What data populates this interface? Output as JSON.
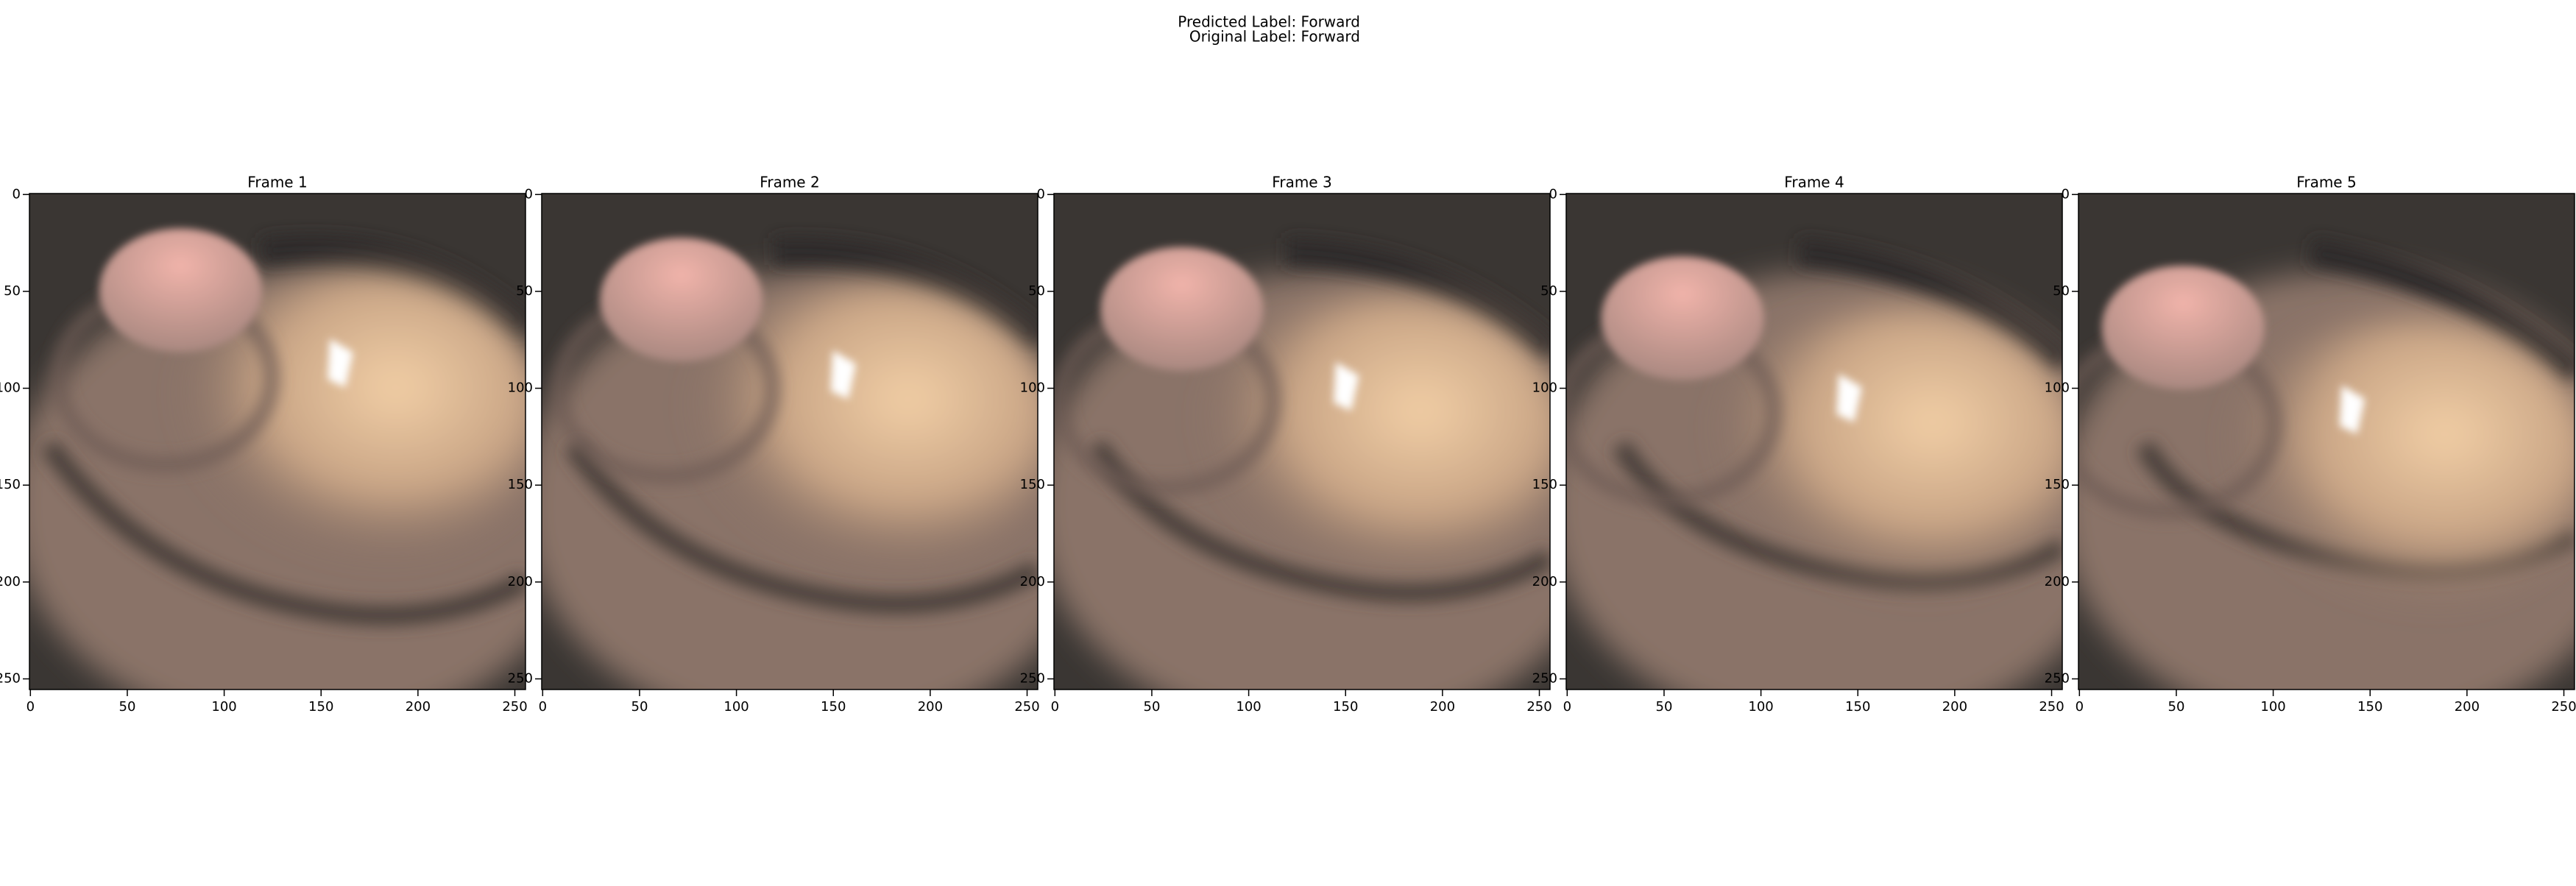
{
  "suptitle": [
    "Predicted Label: Forward",
    "Original Label: Forward"
  ],
  "chart_data": [
    {
      "type": "image",
      "title": "Frame 1",
      "xlim": [
        -0.5,
        255.5
      ],
      "ylim": [
        255.5,
        -0.5
      ],
      "xticks": [
        0,
        50,
        100,
        150,
        200,
        250
      ],
      "yticks": [
        0,
        50,
        100,
        150,
        200,
        250
      ]
    },
    {
      "type": "image",
      "title": "Frame 2",
      "xlim": [
        -0.5,
        255.5
      ],
      "ylim": [
        255.5,
        -0.5
      ],
      "xticks": [
        0,
        50,
        100,
        150,
        200,
        250
      ],
      "yticks": [
        0,
        50,
        100,
        150,
        200,
        250
      ]
    },
    {
      "type": "image",
      "title": "Frame 3",
      "xlim": [
        -0.5,
        255.5
      ],
      "ylim": [
        255.5,
        -0.5
      ],
      "xticks": [
        0,
        50,
        100,
        150,
        200,
        250
      ],
      "yticks": [
        0,
        50,
        100,
        150,
        200,
        250
      ]
    },
    {
      "type": "image",
      "title": "Frame 4",
      "xlim": [
        -0.5,
        255.5
      ],
      "ylim": [
        255.5,
        -0.5
      ],
      "xticks": [
        0,
        50,
        100,
        150,
        200,
        250
      ],
      "yticks": [
        0,
        50,
        100,
        150,
        200,
        250
      ]
    },
    {
      "type": "image",
      "title": "Frame 5",
      "xlim": [
        -0.5,
        255.5
      ],
      "ylim": [
        255.5,
        -0.5
      ],
      "xticks": [
        0,
        50,
        100,
        150,
        200,
        250
      ],
      "yticks": [
        0,
        50,
        100,
        150,
        200,
        250
      ]
    }
  ]
}
